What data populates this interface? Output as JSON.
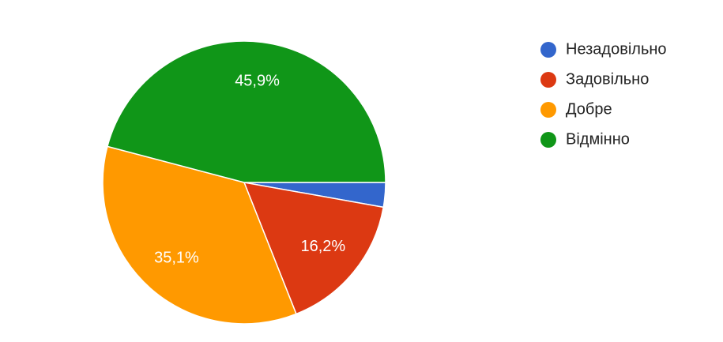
{
  "chart_data": {
    "type": "pie",
    "categories": [
      "Незадовільно",
      "Задовільно",
      "Добре",
      "Відмінно"
    ],
    "values": [
      2.8,
      16.2,
      35.1,
      45.9
    ],
    "value_labels": [
      null,
      "16,2%",
      "35,1%",
      "45,9%"
    ],
    "colors": [
      "#3366cc",
      "#dc3912",
      "#ff9900",
      "#109618"
    ],
    "legend": "right"
  }
}
